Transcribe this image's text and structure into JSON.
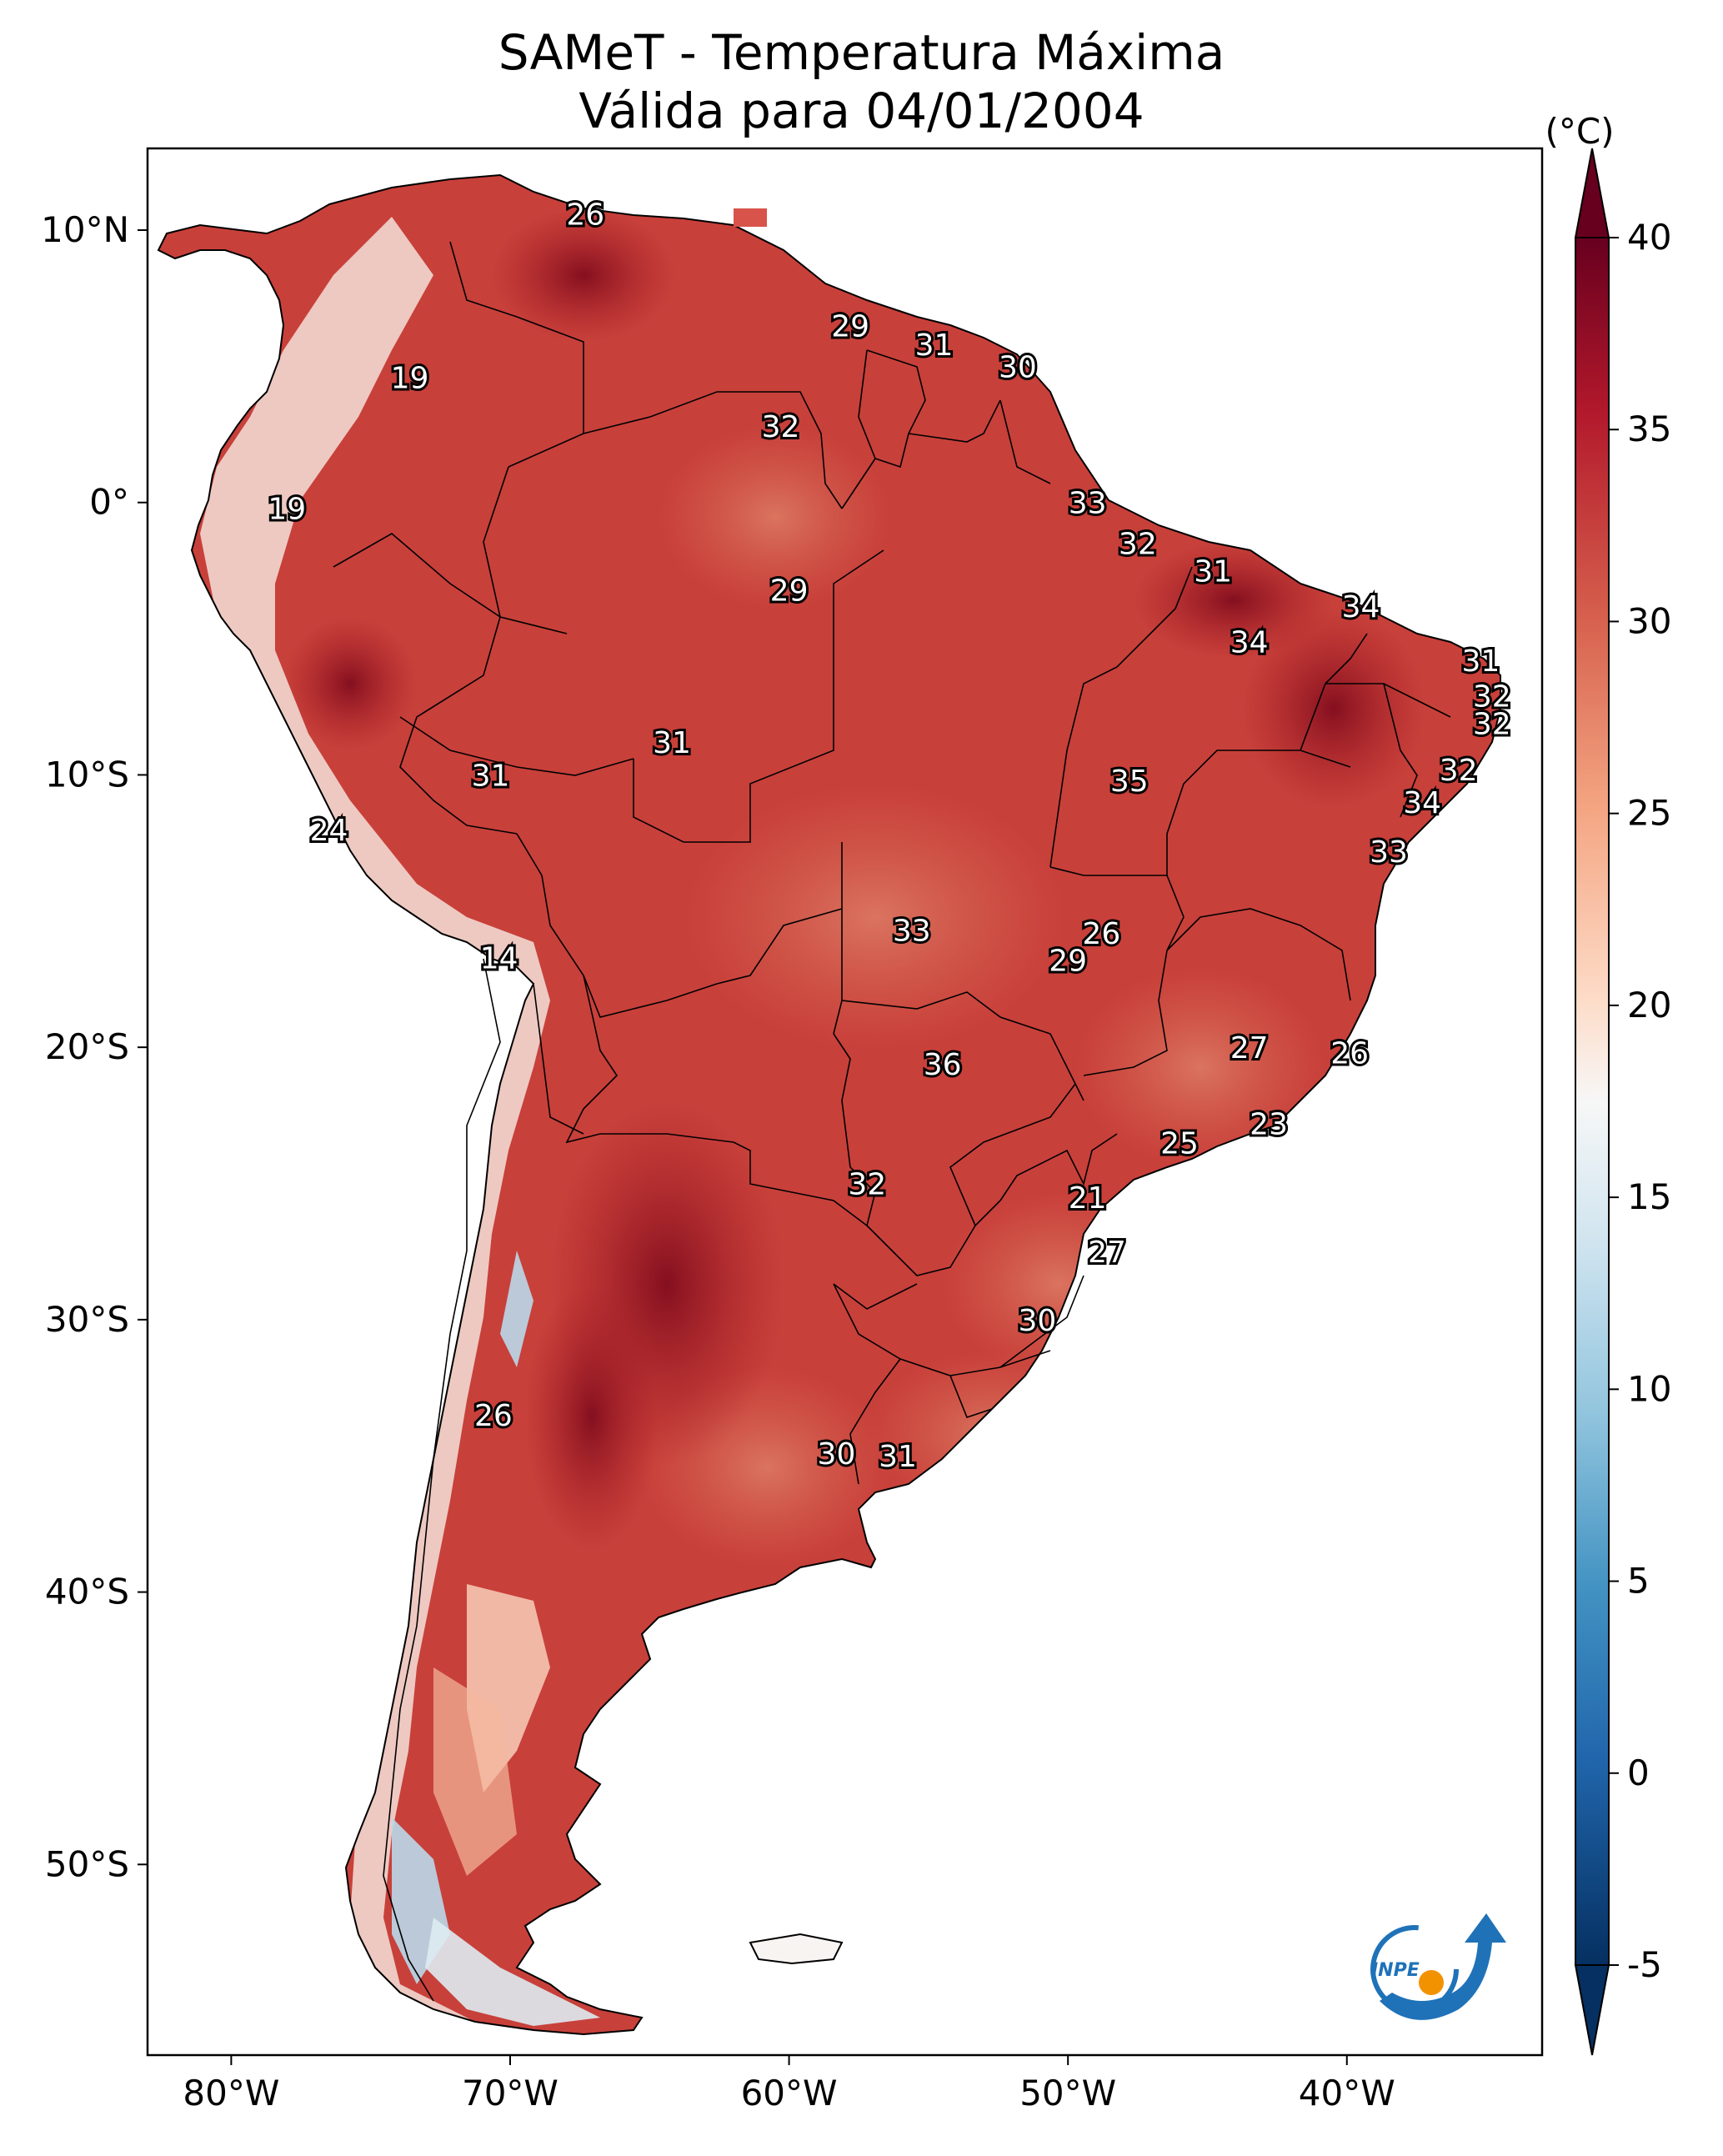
{
  "title": {
    "line1": "SAMeT - Temperatura Máxima",
    "line2": "Válida para 04/01/2004"
  },
  "map": {
    "lon_ticks": [
      "80°W",
      "70°W",
      "60°W",
      "50°W",
      "40°W"
    ],
    "lat_ticks": [
      "10°N",
      "0°",
      "10°S",
      "20°S",
      "30°S",
      "40°S",
      "50°S"
    ],
    "lon_range": [
      -83,
      -33
    ],
    "lat_range": [
      -57,
      13
    ],
    "point_labels": [
      {
        "value": "26",
        "lon": -67.3,
        "lat": 10.6
      },
      {
        "value": "19",
        "lon": -73.6,
        "lat": 4.6
      },
      {
        "value": "29",
        "lon": -57.8,
        "lat": 6.5
      },
      {
        "value": "31",
        "lon": -54.8,
        "lat": 5.8
      },
      {
        "value": "30",
        "lon": -51.8,
        "lat": 5.0
      },
      {
        "value": "32",
        "lon": -60.3,
        "lat": 2.8
      },
      {
        "value": "19",
        "lon": -78.0,
        "lat": -0.2
      },
      {
        "value": "33",
        "lon": -49.3,
        "lat": 0.0
      },
      {
        "value": "32",
        "lon": -47.5,
        "lat": -1.5
      },
      {
        "value": "29",
        "lon": -60.0,
        "lat": -3.2
      },
      {
        "value": "31",
        "lon": -44.8,
        "lat": -2.5
      },
      {
        "value": "34",
        "lon": -39.5,
        "lat": -3.8
      },
      {
        "value": "34",
        "lon": -43.5,
        "lat": -5.1
      },
      {
        "value": "31",
        "lon": -35.2,
        "lat": -5.8
      },
      {
        "value": "32",
        "lon": -34.8,
        "lat": -7.1
      },
      {
        "value": "32",
        "lon": -34.8,
        "lat": -8.1
      },
      {
        "value": "31",
        "lon": -64.2,
        "lat": -8.8
      },
      {
        "value": "31",
        "lon": -70.7,
        "lat": -10.0
      },
      {
        "value": "35",
        "lon": -47.8,
        "lat": -10.2
      },
      {
        "value": "32",
        "lon": -36.0,
        "lat": -9.8
      },
      {
        "value": "34",
        "lon": -37.3,
        "lat": -11.0
      },
      {
        "value": "24",
        "lon": -76.5,
        "lat": -12.0
      },
      {
        "value": "33",
        "lon": -38.5,
        "lat": -12.8
      },
      {
        "value": "26",
        "lon": -48.8,
        "lat": -15.8
      },
      {
        "value": "33",
        "lon": -55.6,
        "lat": -15.7
      },
      {
        "value": "29",
        "lon": -50.0,
        "lat": -16.8
      },
      {
        "value": "14",
        "lon": -70.4,
        "lat": -16.7
      },
      {
        "value": "27",
        "lon": -43.5,
        "lat": -20.0
      },
      {
        "value": "26",
        "lon": -39.9,
        "lat": -20.2
      },
      {
        "value": "36",
        "lon": -54.5,
        "lat": -20.6
      },
      {
        "value": "23",
        "lon": -42.8,
        "lat": -22.8
      },
      {
        "value": "25",
        "lon": -46.0,
        "lat": -23.5
      },
      {
        "value": "32",
        "lon": -57.2,
        "lat": -25.0
      },
      {
        "value": "21",
        "lon": -49.3,
        "lat": -25.5
      },
      {
        "value": "27",
        "lon": -48.6,
        "lat": -27.5
      },
      {
        "value": "30",
        "lon": -51.1,
        "lat": -30.0
      },
      {
        "value": "26",
        "lon": -70.6,
        "lat": -33.5
      },
      {
        "value": "30",
        "lon": -58.3,
        "lat": -34.9
      },
      {
        "value": "31",
        "lon": -56.1,
        "lat": -35.0
      }
    ],
    "colors": {
      "ocean": "#ffffff",
      "land_base": "#c8403a",
      "hot_core": "#8c0f1e",
      "andes_cool": "#f3e2da",
      "andes_cold": "#b9d8ea"
    }
  },
  "colorbar": {
    "unit_label": "(°C)",
    "ticks": [
      "40",
      "35",
      "30",
      "25",
      "20",
      "15",
      "10",
      "5",
      "0",
      "-5"
    ],
    "tick_values": [
      40,
      35,
      30,
      25,
      20,
      15,
      10,
      5,
      0,
      -5
    ],
    "range": [
      -5,
      40
    ],
    "colormap": "RdBu_r",
    "gradient_colors": [
      "#67001f",
      "#b2182b",
      "#d6604d",
      "#f4a582",
      "#fddbc7",
      "#f7f7f7",
      "#d1e5f0",
      "#92c5de",
      "#4393c3",
      "#2166ac",
      "#053061"
    ]
  },
  "logo": {
    "text": "INPE",
    "primary_color": "#1f72b8",
    "accent_color": "#f39200"
  }
}
